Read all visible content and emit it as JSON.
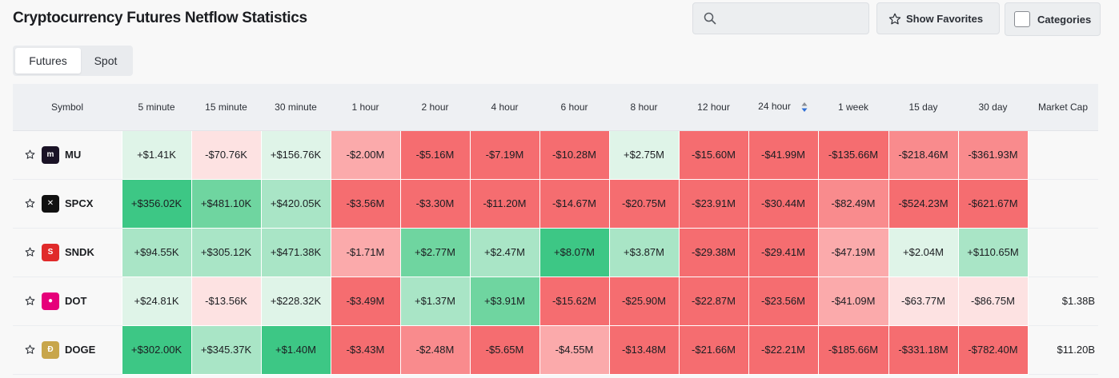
{
  "page": {
    "title": "Cryptocurrency Futures Netflow Statistics"
  },
  "search": {
    "placeholder": ""
  },
  "toolbar": {
    "favorites_label": "Show Favorites",
    "categories_label": "Categories"
  },
  "tabs": [
    {
      "label": "Futures",
      "active": true
    },
    {
      "label": "Spot",
      "active": false
    }
  ],
  "colors": {
    "green_strong": "#3dc785",
    "green_mid": "#6fd5a0",
    "green_soft": "#a9e5c6",
    "green_faint": "#dff4e8",
    "red_strong": "#f56d70",
    "red_mid": "#f98b8d",
    "red_soft": "#fbaaab",
    "red_faint": "#fde2e2"
  },
  "table": {
    "headers": [
      "Symbol",
      "5 minute",
      "15 minute",
      "30 minute",
      "1 hour",
      "2 hour",
      "4 hour",
      "6 hour",
      "8 hour",
      "12 hour",
      "24 hour",
      "1 week",
      "15 day",
      "30 day",
      "Market Cap"
    ],
    "sorted_column": "24 hour",
    "rows": [
      {
        "symbol": "MU",
        "logo_color": "#1a1326",
        "logo_glyph": "m",
        "cells": [
          "+$1.41K",
          "-$70.76K",
          "+$156.76K",
          "-$2.00M",
          "-$5.16M",
          "-$7.19M",
          "-$10.28M",
          "+$2.75M",
          "-$15.60M",
          "-$41.99M",
          "-$135.66M",
          "-$218.46M",
          "-$361.93M"
        ],
        "shades": [
          "gf",
          "rf",
          "gf",
          "rs",
          "rx",
          "rx",
          "rx",
          "gf",
          "rx",
          "rx",
          "rx",
          "rm",
          "rm"
        ],
        "market_cap": ""
      },
      {
        "symbol": "SPCX",
        "logo_color": "#111111",
        "logo_glyph": "✕",
        "cells": [
          "+$356.02K",
          "+$481.10K",
          "+$420.05K",
          "-$3.56M",
          "-$3.30M",
          "-$11.20M",
          "-$14.67M",
          "-$20.75M",
          "-$23.91M",
          "-$30.44M",
          "-$82.49M",
          "-$524.23M",
          "-$621.67M"
        ],
        "shades": [
          "gx",
          "gm",
          "gs",
          "rx",
          "rx",
          "rx",
          "rx",
          "rx",
          "rx",
          "rx",
          "rm",
          "rx",
          "rx"
        ],
        "market_cap": ""
      },
      {
        "symbol": "SNDK",
        "logo_color": "#e02a2a",
        "logo_glyph": "S",
        "cells": [
          "+$94.55K",
          "+$305.12K",
          "+$471.38K",
          "-$1.71M",
          "+$2.77M",
          "+$2.47M",
          "+$8.07M",
          "+$3.87M",
          "-$29.38M",
          "-$29.41M",
          "-$47.19M",
          "+$2.04M",
          "+$110.65M"
        ],
        "shades": [
          "gs",
          "gs",
          "gs",
          "rs",
          "gm",
          "gs",
          "gx",
          "gs",
          "rx",
          "rx",
          "rs",
          "gf",
          "gs"
        ],
        "market_cap": ""
      },
      {
        "symbol": "DOT",
        "logo_color": "#e6007a",
        "logo_glyph": "●",
        "cells": [
          "+$24.81K",
          "-$13.56K",
          "+$228.32K",
          "-$3.49M",
          "+$1.37M",
          "+$3.91M",
          "-$15.62M",
          "-$25.90M",
          "-$22.87M",
          "-$23.56M",
          "-$41.09M",
          "-$63.77M",
          "-$86.75M"
        ],
        "shades": [
          "gf",
          "rf",
          "gf",
          "rx",
          "gs",
          "gm",
          "rx",
          "rx",
          "rx",
          "rx",
          "rs",
          "rf",
          "rf"
        ],
        "market_cap": "$1.38B"
      },
      {
        "symbol": "DOGE",
        "logo_color": "#c8a64b",
        "logo_glyph": "Ð",
        "cells": [
          "+$302.00K",
          "+$345.37K",
          "+$1.40M",
          "-$3.43M",
          "-$2.48M",
          "-$5.65M",
          "-$4.55M",
          "-$13.48M",
          "-$21.66M",
          "-$22.21M",
          "-$185.66M",
          "-$331.18M",
          "-$782.40M"
        ],
        "shades": [
          "gx",
          "gs",
          "gx",
          "rx",
          "rm",
          "rx",
          "rs",
          "rx",
          "rx",
          "rx",
          "rx",
          "rx",
          "rx"
        ],
        "market_cap": "$11.20B"
      }
    ]
  }
}
